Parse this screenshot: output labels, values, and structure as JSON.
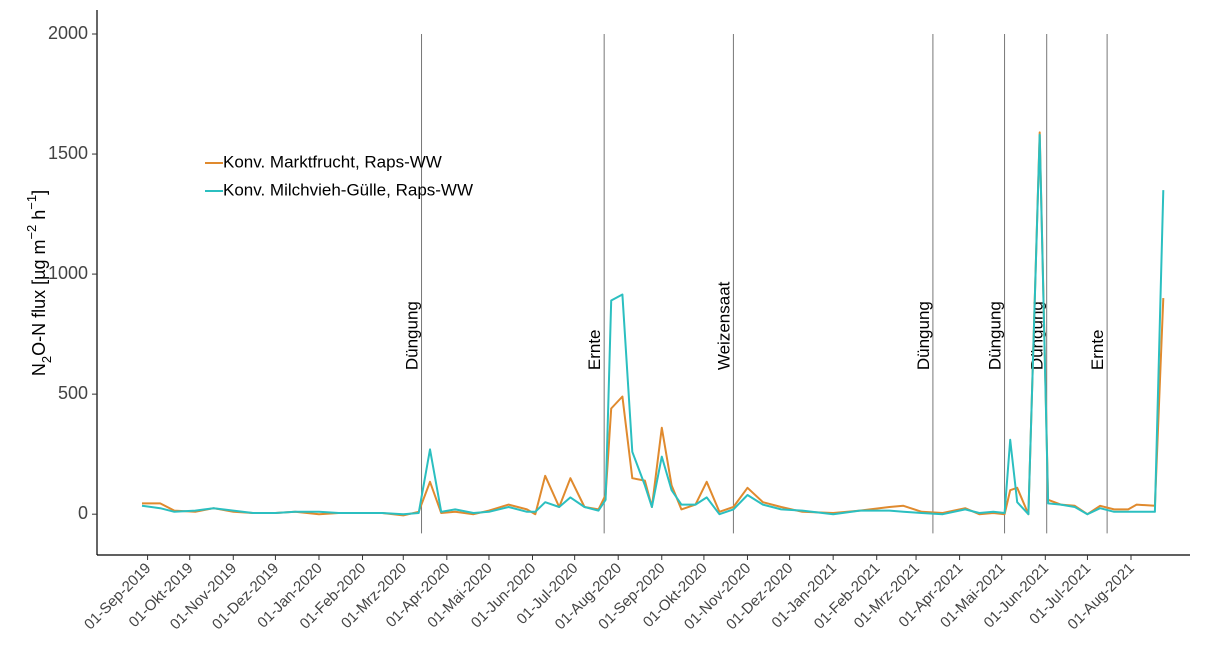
{
  "chart_data": {
    "type": "line",
    "ylabel": [
      "N",
      "2",
      "O-N flux [µg m",
      "−2",
      " h",
      "−1",
      "]"
    ],
    "x": [
      "2019-08-28",
      "2019-09-10",
      "2019-09-20",
      "2019-10-05",
      "2019-10-18",
      "2019-11-01",
      "2019-11-15",
      "2019-12-01",
      "2019-12-15",
      "2020-01-01",
      "2020-01-15",
      "2020-02-01",
      "2020-02-15",
      "2020-03-01",
      "2020-03-12",
      "2020-03-20",
      "2020-03-28",
      "2020-04-07",
      "2020-04-20",
      "2020-05-01",
      "2020-05-15",
      "2020-05-28",
      "2020-06-03",
      "2020-06-10",
      "2020-06-20",
      "2020-06-28",
      "2020-07-08",
      "2020-07-18",
      "2020-07-23",
      "2020-07-27",
      "2020-08-04",
      "2020-08-11",
      "2020-08-20",
      "2020-08-25",
      "2020-09-01",
      "2020-09-08",
      "2020-09-15",
      "2020-09-25",
      "2020-10-03",
      "2020-10-12",
      "2020-10-22",
      "2020-11-01",
      "2020-11-12",
      "2020-11-25",
      "2020-12-10",
      "2021-01-01",
      "2021-01-20",
      "2021-02-10",
      "2021-02-20",
      "2021-03-05",
      "2021-03-20",
      "2021-04-05",
      "2021-04-15",
      "2021-04-25",
      "2021-05-03",
      "2021-05-07",
      "2021-05-12",
      "2021-05-20",
      "2021-05-28",
      "2021-06-03",
      "2021-06-12",
      "2021-06-22",
      "2021-07-01",
      "2021-07-10",
      "2021-07-20",
      "2021-07-30",
      "2021-08-05",
      "2021-08-18",
      "2021-08-24"
    ],
    "series": [
      {
        "name": "Konv. Marktfrucht, Raps-WW",
        "color": "#e08a2e",
        "values": [
          45,
          45,
          15,
          10,
          25,
          10,
          5,
          5,
          10,
          0,
          5,
          5,
          5,
          -5,
          10,
          135,
          5,
          10,
          0,
          15,
          40,
          20,
          0,
          160,
          30,
          150,
          30,
          20,
          80,
          440,
          490,
          150,
          140,
          30,
          360,
          120,
          20,
          40,
          135,
          10,
          30,
          110,
          50,
          30,
          10,
          5,
          15,
          30,
          35,
          10,
          5,
          25,
          0,
          5,
          0,
          100,
          110,
          0,
          1590,
          60,
          40,
          35,
          0,
          35,
          20,
          20,
          40,
          35,
          900
        ]
      },
      {
        "name": "Konv. Milchvieh-Gülle, Raps-WW",
        "color": "#2bbfc0",
        "values": [
          35,
          25,
          10,
          15,
          25,
          15,
          5,
          5,
          10,
          10,
          5,
          5,
          5,
          0,
          5,
          270,
          10,
          20,
          5,
          10,
          30,
          10,
          10,
          50,
          30,
          70,
          30,
          15,
          60,
          890,
          915,
          260,
          120,
          30,
          240,
          100,
          40,
          40,
          70,
          0,
          20,
          80,
          40,
          20,
          15,
          0,
          15,
          15,
          10,
          5,
          0,
          20,
          5,
          10,
          5,
          310,
          50,
          0,
          1580,
          45,
          40,
          30,
          0,
          25,
          10,
          10,
          10,
          10,
          1350
        ]
      }
    ],
    "annotations": [
      {
        "x": "2020-03-14",
        "text": "Düngung"
      },
      {
        "x": "2020-07-22",
        "text": "Ernte"
      },
      {
        "x": "2020-10-22",
        "text": "Weizensaat"
      },
      {
        "x": "2021-03-13",
        "text": "Düngung"
      },
      {
        "x": "2021-05-03",
        "text": "Düngung"
      },
      {
        "x": "2021-06-02",
        "text": "Düngung"
      },
      {
        "x": "2021-07-15",
        "text": "Ernte"
      }
    ],
    "xlim": [
      "2019-07-27",
      "2021-09-12"
    ],
    "xticks": [
      {
        "value": "2019-09-01",
        "label": "01-Sep-2019"
      },
      {
        "value": "2019-10-01",
        "label": "01-Okt-2019"
      },
      {
        "value": "2019-11-01",
        "label": "01-Nov-2019"
      },
      {
        "value": "2019-12-01",
        "label": "01-Dez-2019"
      },
      {
        "value": "2020-01-01",
        "label": "01-Jan-2020"
      },
      {
        "value": "2020-02-01",
        "label": "01-Feb-2020"
      },
      {
        "value": "2020-03-01",
        "label": "01-Mrz-2020"
      },
      {
        "value": "2020-04-01",
        "label": "01-Apr-2020"
      },
      {
        "value": "2020-05-01",
        "label": "01-Mai-2020"
      },
      {
        "value": "2020-06-01",
        "label": "01-Jun-2020"
      },
      {
        "value": "2020-07-01",
        "label": "01-Jul-2020"
      },
      {
        "value": "2020-08-01",
        "label": "01-Aug-2020"
      },
      {
        "value": "2020-09-01",
        "label": "01-Sep-2020"
      },
      {
        "value": "2020-10-01",
        "label": "01-Okt-2020"
      },
      {
        "value": "2020-11-01",
        "label": "01-Nov-2020"
      },
      {
        "value": "2020-12-01",
        "label": "01-Dez-2020"
      },
      {
        "value": "2021-01-01",
        "label": "01-Jan-2021"
      },
      {
        "value": "2021-02-01",
        "label": "01-Feb-2021"
      },
      {
        "value": "2021-03-01",
        "label": "01-Mrz-2021"
      },
      {
        "value": "2021-04-01",
        "label": "01-Apr-2021"
      },
      {
        "value": "2021-05-01",
        "label": "01-Mai-2021"
      },
      {
        "value": "2021-06-01",
        "label": "01-Jun-2021"
      },
      {
        "value": "2021-07-01",
        "label": "01-Jul-2021"
      },
      {
        "value": "2021-08-01",
        "label": "01-Aug-2021"
      }
    ],
    "ylim": [
      -170,
      2100
    ],
    "yticks": [
      0,
      500,
      1000,
      1500,
      2000
    ],
    "legend": "top-left"
  }
}
